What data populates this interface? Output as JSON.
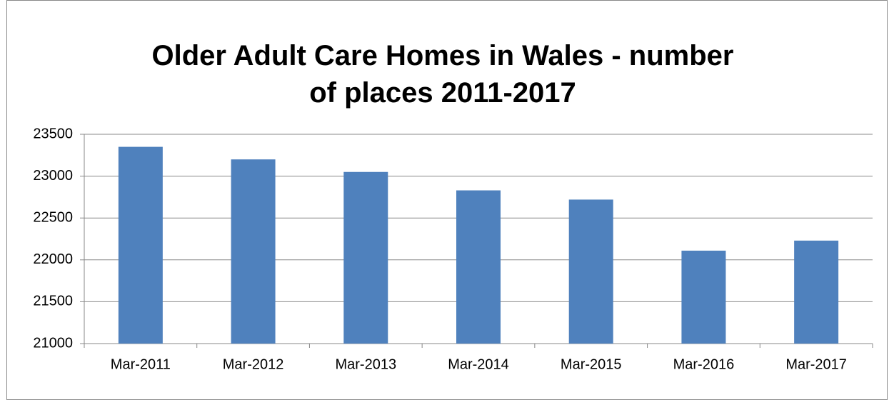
{
  "chart_data": {
    "type": "bar",
    "title": "Older Adult Care Homes in Wales - number of places 2011-2017",
    "categories": [
      "Mar-2011",
      "Mar-2012",
      "Mar-2013",
      "Mar-2014",
      "Mar-2015",
      "Mar-2016",
      "Mar-2017"
    ],
    "values": [
      23350,
      23200,
      23050,
      22830,
      22720,
      22110,
      22230
    ],
    "color": "#4f81bd",
    "ylim": [
      21000,
      23500
    ],
    "yticks": [
      21000,
      21500,
      22000,
      22500,
      23000,
      23500
    ],
    "grid": true
  }
}
